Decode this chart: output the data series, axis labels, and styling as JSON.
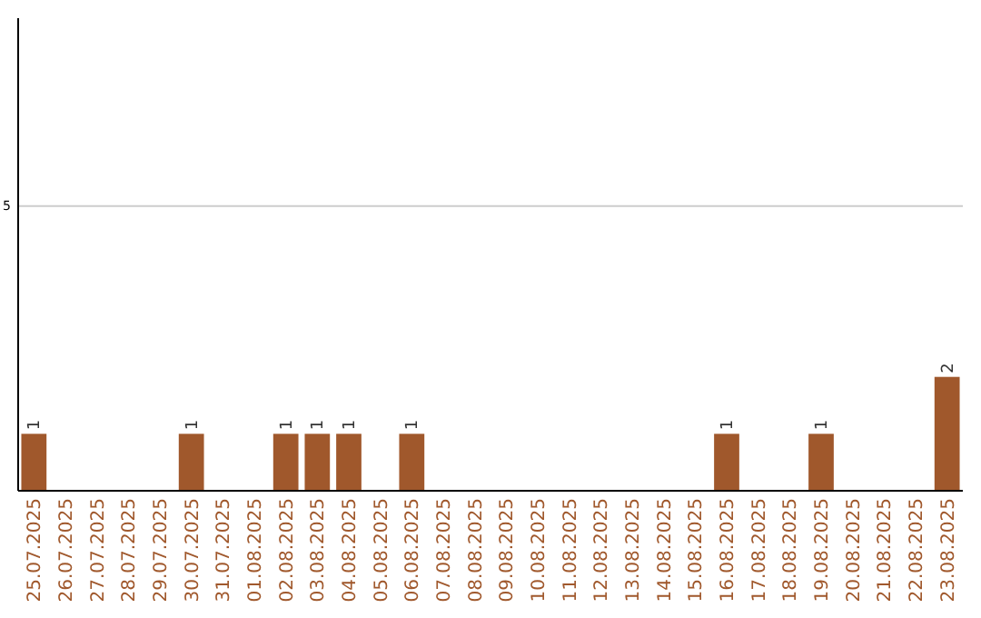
{
  "chart_data": {
    "type": "bar",
    "categories": [
      "25.07.2025",
      "26.07.2025",
      "27.07.2025",
      "28.07.2025",
      "29.07.2025",
      "30.07.2025",
      "31.07.2025",
      "01.08.2025",
      "02.08.2025",
      "03.08.2025",
      "04.08.2025",
      "05.08.2025",
      "06.08.2025",
      "07.08.2025",
      "08.08.2025",
      "09.08.2025",
      "10.08.2025",
      "11.08.2025",
      "12.08.2025",
      "13.08.2025",
      "14.08.2025",
      "15.08.2025",
      "16.08.2025",
      "17.08.2025",
      "18.08.2025",
      "19.08.2025",
      "20.08.2025",
      "21.08.2025",
      "22.08.2025",
      "23.08.2025"
    ],
    "values": [
      1,
      0,
      0,
      0,
      0,
      1,
      0,
      0,
      1,
      1,
      1,
      0,
      1,
      0,
      0,
      0,
      0,
      0,
      0,
      0,
      0,
      0,
      1,
      0,
      0,
      1,
      0,
      0,
      0,
      2
    ],
    "value_labels": [
      "1",
      null,
      null,
      null,
      null,
      "1",
      null,
      null,
      "1",
      "1",
      "1",
      null,
      "1",
      null,
      null,
      null,
      null,
      null,
      null,
      null,
      null,
      null,
      "1",
      null,
      null,
      "1",
      null,
      null,
      null,
      "2"
    ],
    "color": "#a0582c",
    "ylim": [
      0,
      8.3
    ],
    "yticks": [
      5
    ],
    "grid": "y"
  }
}
